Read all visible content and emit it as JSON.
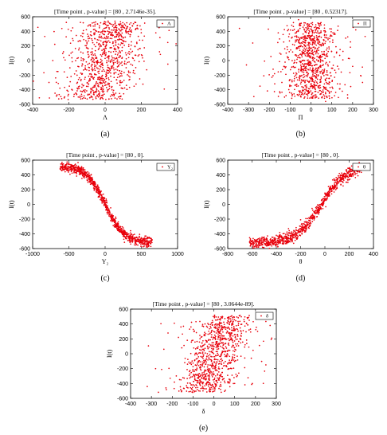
{
  "colors": {
    "points": "#e8000b",
    "axes": "#000000",
    "background": "#ffffff"
  },
  "chart_data": [
    {
      "type": "scatter",
      "panel": "a",
      "caption": "(a)",
      "title": "[Time point , p-value] = [80 , 2.7146e-35].",
      "xlabel": "Λ",
      "ylabel": "I(t)",
      "legend": "Λ",
      "legend_position": "top-right",
      "xlim": [
        -400,
        400
      ],
      "ylim": [
        -600,
        600
      ],
      "xticks": [
        -400,
        -200,
        0,
        200,
        400
      ],
      "yticks": [
        -600,
        -400,
        -200,
        0,
        200,
        400,
        600
      ],
      "xtick_labels": [
        "-400",
        "-200",
        "0",
        "200",
        "400"
      ],
      "ytick_labels": [
        "-600",
        "-400",
        "-200",
        "0",
        "200",
        "400",
        "600"
      ],
      "trend": {
        "kind": "linear",
        "slope": 0.45,
        "center": 0,
        "spread": 90,
        "y_range": [
          -540,
          540
        ]
      },
      "points": [
        [
          -310,
          -300
        ],
        [
          -260,
          -150
        ],
        [
          -230,
          120
        ],
        [
          -205,
          -420
        ],
        [
          -180,
          300
        ],
        [
          -150,
          -80
        ],
        [
          -120,
          410
        ],
        [
          -95,
          -470
        ],
        [
          -60,
          220
        ],
        [
          -30,
          -300
        ],
        [
          0,
          30
        ],
        [
          30,
          350
        ],
        [
          60,
          -120
        ],
        [
          95,
          480
        ],
        [
          130,
          40
        ],
        [
          175,
          250
        ],
        [
          215,
          -10
        ],
        [
          280,
          380
        ],
        [
          300,
          120
        ],
        [
          -110,
          -230
        ]
      ]
    },
    {
      "type": "scatter",
      "panel": "b",
      "caption": "(b)",
      "title": "[Time point , p-value] = [80 , 0.52317].",
      "xlabel": "Π",
      "ylabel": "I(t)",
      "legend": "Π",
      "legend_position": "top-right",
      "xlim": [
        -400,
        300
      ],
      "ylim": [
        -600,
        600
      ],
      "xticks": [
        -400,
        -300,
        -200,
        -100,
        0,
        100,
        200,
        300
      ],
      "yticks": [
        -600,
        -400,
        -200,
        0,
        200,
        400,
        600
      ],
      "xtick_labels": [
        "-400",
        "-300",
        "-200",
        "-100",
        "0",
        "100",
        "200",
        "300"
      ],
      "ytick_labels": [
        "-600",
        "-400",
        "-200",
        "0",
        "200",
        "400",
        "600"
      ],
      "trend": {
        "kind": "none",
        "center": 0,
        "spread": 55,
        "y_range": [
          -520,
          520
        ]
      },
      "points": [
        [
          -310,
          -60
        ],
        [
          -280,
          240
        ],
        [
          -245,
          -350
        ],
        [
          -205,
          430
        ],
        [
          -175,
          -180
        ],
        [
          -150,
          100
        ],
        [
          -120,
          -480
        ],
        [
          -90,
          320
        ],
        [
          90,
          -300
        ],
        [
          120,
          190
        ],
        [
          150,
          -420
        ],
        [
          180,
          30
        ],
        [
          215,
          420
        ],
        [
          240,
          -210
        ],
        [
          260,
          330
        ],
        [
          -140,
          -300
        ],
        [
          130,
          470
        ],
        [
          -60,
          560
        ],
        [
          70,
          -560
        ],
        [
          200,
          -80
        ]
      ]
    },
    {
      "type": "scatter",
      "panel": "c",
      "caption": "(c)",
      "title": "[Time point , p-value] = [80 , 0].",
      "xlabel": "Υ₂",
      "ylabel": "I(t)",
      "legend": "Υ₂",
      "legend_position": "top-right",
      "xlim": [
        -1000,
        1000
      ],
      "ylim": [
        -600,
        600
      ],
      "xticks": [
        -1000,
        -500,
        0,
        500,
        1000
      ],
      "yticks": [
        -600,
        -400,
        -200,
        0,
        200,
        400,
        600
      ],
      "xtick_labels": [
        "-1000",
        "-500",
        "0",
        "500",
        "1000"
      ],
      "ytick_labels": [
        "-600",
        "-400",
        "-200",
        "0",
        "200",
        "400",
        "600"
      ],
      "trend": {
        "kind": "sigmoid_decreasing",
        "amplitude": 520,
        "scale": 260,
        "spread": 35,
        "x_range": [
          -620,
          650
        ]
      },
      "points": [
        [
          -600,
          510
        ],
        [
          -540,
          500
        ],
        [
          -450,
          470
        ],
        [
          -350,
          420
        ],
        [
          -250,
          330
        ],
        [
          -150,
          190
        ],
        [
          -50,
          60
        ],
        [
          50,
          -60
        ],
        [
          150,
          -190
        ],
        [
          250,
          -320
        ],
        [
          350,
          -420
        ],
        [
          450,
          -470
        ],
        [
          550,
          -500
        ],
        [
          640,
          -500
        ]
      ]
    },
    {
      "type": "scatter",
      "panel": "d",
      "caption": "(d)",
      "title": "[Time point , p-value] = [80 , 0].",
      "xlabel": "θ",
      "ylabel": "I(t)",
      "legend": "θ",
      "legend_position": "top-right",
      "xlim": [
        -800,
        400
      ],
      "ylim": [
        -600,
        600
      ],
      "xticks": [
        -800,
        -600,
        -400,
        -200,
        0,
        200,
        400
      ],
      "yticks": [
        -600,
        -400,
        -200,
        0,
        200,
        400,
        600
      ],
      "xtick_labels": [
        "-800",
        "-600",
        "-400",
        "-200",
        "0",
        "200",
        "400"
      ],
      "ytick_labels": [
        "-600",
        "-400",
        "-200",
        "0",
        "200",
        "400",
        "600"
      ],
      "trend": {
        "kind": "sigmoid_increasing",
        "amplitude": 520,
        "scale": 200,
        "center": -30,
        "spread": 40,
        "x_range": [
          -620,
          300
        ]
      },
      "points": [
        [
          -620,
          -510
        ],
        [
          -560,
          -500
        ],
        [
          -480,
          -470
        ],
        [
          -400,
          -420
        ],
        [
          -300,
          -330
        ],
        [
          -200,
          -210
        ],
        [
          -100,
          -80
        ],
        [
          0,
          60
        ],
        [
          100,
          220
        ],
        [
          200,
          380
        ],
        [
          260,
          460
        ],
        [
          300,
          500
        ]
      ]
    },
    {
      "type": "scatter",
      "panel": "e",
      "caption": "(e)",
      "title": "[Time point , p-value] = [80 , 3.0644e-89].",
      "xlabel": "δ",
      "ylabel": "I(t)",
      "legend": "δ",
      "legend_position": "top-right",
      "xlim": [
        -400,
        300
      ],
      "ylim": [
        -600,
        600
      ],
      "xticks": [
        -400,
        -300,
        -200,
        -100,
        0,
        100,
        200,
        300
      ],
      "yticks": [
        -600,
        -400,
        -200,
        0,
        200,
        400,
        600
      ],
      "xtick_labels": [
        "-400",
        "-300",
        "-200",
        "-100",
        "0",
        "100",
        "200",
        "300"
      ],
      "ytick_labels": [
        "-600",
        "-400",
        "-200",
        "0",
        "200",
        "400",
        "600"
      ],
      "trend": {
        "kind": "linear",
        "slope": 0.5,
        "center": 10,
        "spread": 60,
        "y_range": [
          -520,
          520
        ]
      },
      "points": [
        [
          -320,
          -440
        ],
        [
          -280,
          -200
        ],
        [
          -240,
          60
        ],
        [
          -210,
          -330
        ],
        [
          -170,
          220
        ],
        [
          -140,
          -120
        ],
        [
          -110,
          360
        ],
        [
          -80,
          -480
        ],
        [
          120,
          -260
        ],
        [
          150,
          120
        ],
        [
          180,
          -60
        ],
        [
          210,
          300
        ],
        [
          250,
          -150
        ],
        [
          270,
          380
        ],
        [
          -230,
          -460
        ],
        [
          170,
          450
        ],
        [
          -190,
          410
        ],
        [
          100,
          -400
        ]
      ]
    }
  ]
}
